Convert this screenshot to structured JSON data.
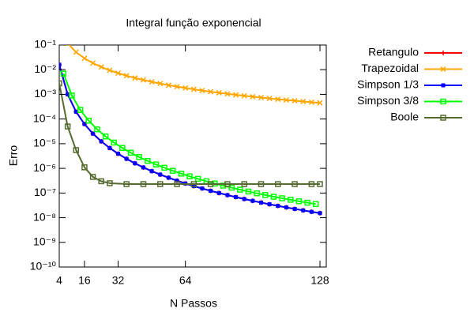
{
  "chart_data": {
    "type": "line",
    "title": "Integral função exponencial",
    "x_label": "N Passos",
    "y_label": "Erro",
    "xlim": [
      4,
      131
    ],
    "xticks": [
      4,
      16,
      32,
      64,
      128
    ],
    "ylim": [
      1e-10,
      0.1
    ],
    "log_y": true,
    "yticks": [
      {
        "value": 1e-10,
        "label": "10⁻¹⁰"
      },
      {
        "value": 1e-09,
        "label": "10⁻⁹"
      },
      {
        "value": 1e-08,
        "label": "10⁻⁸"
      },
      {
        "value": 1e-07,
        "label": "10⁻⁷"
      },
      {
        "value": 1e-06,
        "label": "10⁻⁶"
      },
      {
        "value": 1e-05,
        "label": "10⁻⁵"
      },
      {
        "value": 0.0001,
        "label": "10⁻⁴"
      },
      {
        "value": 0.001,
        "label": "10⁻³"
      },
      {
        "value": 0.01,
        "label": "10⁻²"
      },
      {
        "value": 0.1,
        "label": "10⁻¹"
      }
    ],
    "legend": "outside-right",
    "series": [
      {
        "name": "Retangulo",
        "color": "#ff0000",
        "marker": "plus",
        "x": [
          4,
          8,
          12,
          16,
          20,
          24,
          28,
          32,
          36,
          40,
          44,
          48,
          52,
          56,
          60,
          64,
          68,
          72,
          76,
          80,
          84,
          88,
          92,
          96,
          100,
          104,
          108,
          112,
          116,
          120,
          124,
          128
        ],
        "values": [
          0.016,
          0.001,
          0.000198,
          6.26e-05,
          2.56e-05,
          1.24e-05,
          6.67e-06,
          3.91e-06,
          2.44e-06,
          1.6e-06,
          1.09e-06,
          7.72e-07,
          5.6e-07,
          4.17e-07,
          3.16e-07,
          2.44e-07,
          1.92e-07,
          1.53e-07,
          1.23e-07,
          1e-07,
          8.24e-08,
          6.83e-08,
          5.72e-08,
          4.83e-08,
          4.1e-08,
          3.5e-08,
          3.01e-08,
          2.61e-08,
          2.27e-08,
          1.98e-08,
          1.73e-08,
          1.53e-08
        ]
      },
      {
        "name": "Trapezoidal",
        "color": "#ffa500",
        "marker": "cross",
        "x": [
          4,
          8,
          12,
          16,
          20,
          24,
          28,
          32,
          36,
          40,
          44,
          48,
          52,
          56,
          60,
          64,
          68,
          72,
          76,
          80,
          84,
          88,
          92,
          96,
          100,
          104,
          108,
          112,
          116,
          120,
          124,
          128
        ],
        "values": [
          0.46,
          0.116,
          0.0514,
          0.0289,
          0.0185,
          0.01285,
          0.00944,
          0.00723,
          0.00571,
          0.00463,
          0.00382,
          0.00321,
          0.00274,
          0.00236,
          0.00206,
          0.00181,
          0.0016,
          0.00143,
          0.00128,
          0.00116,
          0.00105,
          0.000956,
          0.000874,
          0.000803,
          0.00074,
          0.000684,
          0.000634,
          0.00059,
          0.00055,
          0.000514,
          0.000481,
          0.000452
        ]
      },
      {
        "name": "Simpson 1/3",
        "color": "#0000ff",
        "marker": "filled-box",
        "x": [
          4,
          8,
          12,
          16,
          20,
          24,
          28,
          32,
          36,
          40,
          44,
          48,
          52,
          56,
          60,
          64,
          68,
          72,
          76,
          80,
          84,
          88,
          92,
          96,
          100,
          104,
          108,
          112,
          116,
          120,
          124,
          128
        ],
        "values": [
          0.016,
          0.001,
          0.000198,
          6.26e-05,
          2.56e-05,
          1.24e-05,
          6.67e-06,
          3.91e-06,
          2.44e-06,
          1.6e-06,
          1.09e-06,
          7.72e-07,
          5.6e-07,
          4.17e-07,
          3.16e-07,
          2.44e-07,
          1.92e-07,
          1.53e-07,
          1.23e-07,
          1e-07,
          8.24e-08,
          6.83e-08,
          5.72e-08,
          4.83e-08,
          4.1e-08,
          3.5e-08,
          3.01e-08,
          2.61e-08,
          2.27e-08,
          1.98e-08,
          1.73e-08,
          1.53e-08
        ]
      },
      {
        "name": "Simpson 3/8",
        "color": "#00ff00",
        "marker": "box",
        "x": [
          6,
          10,
          14,
          18,
          22,
          26,
          30,
          34,
          38,
          42,
          46,
          50,
          54,
          58,
          62,
          66,
          70,
          74,
          78,
          82,
          86,
          90,
          94,
          98,
          102,
          106,
          110,
          114,
          118,
          122,
          126
        ],
        "values": [
          0.00694,
          0.0009,
          0.000234,
          8.57e-05,
          3.84e-05,
          1.97e-05,
          1.11e-05,
          6.74e-06,
          4.32e-06,
          2.89e-06,
          2.01e-06,
          1.44e-06,
          1.06e-06,
          7.96e-07,
          6.09e-07,
          4.74e-07,
          3.75e-07,
          3e-07,
          2.43e-07,
          1.99e-07,
          1.65e-07,
          1.37e-07,
          1.15e-07,
          9.74e-08,
          8.3e-08,
          7.1e-08,
          6.15e-08,
          5.33e-08,
          4.64e-08,
          4.06e-08,
          3.57e-08
        ]
      },
      {
        "name": "Boole",
        "color": "#556b2f",
        "marker": "box",
        "x": [
          4,
          8,
          12,
          16,
          20,
          24,
          28,
          36,
          44,
          52,
          60,
          68,
          76,
          84,
          92,
          100,
          108,
          116,
          124,
          128
        ],
        "values": [
          0.0028,
          5e-05,
          5.5e-06,
          1.1e-06,
          4.5e-07,
          3e-07,
          2.5e-07,
          2.3e-07,
          2.3e-07,
          2.3e-07,
          2.3e-07,
          2.3e-07,
          2.3e-07,
          2.3e-07,
          2.3e-07,
          2.3e-07,
          2.3e-07,
          2.3e-07,
          2.3e-07,
          2.3e-07
        ]
      }
    ]
  }
}
